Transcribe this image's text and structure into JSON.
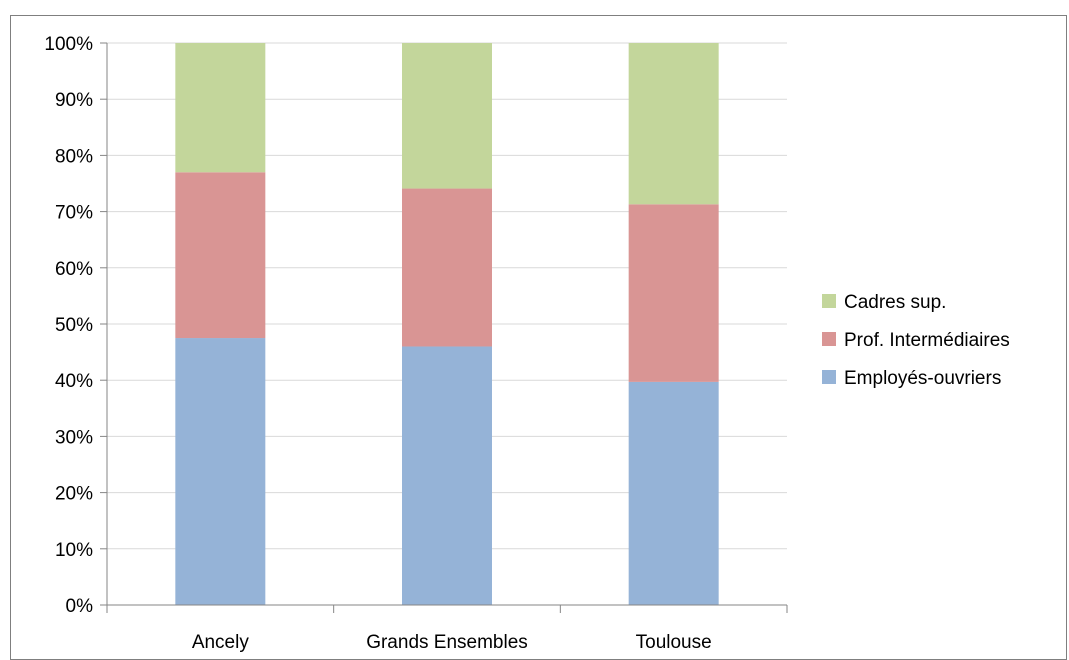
{
  "chart_data": {
    "type": "bar",
    "stacked": true,
    "categories": [
      "Ancely",
      "Grands Ensembles",
      "Toulouse"
    ],
    "series": [
      {
        "name": "Employés-ouvriers",
        "values": [
          47.5,
          46,
          39.7
        ],
        "color": "#95b3d7"
      },
      {
        "name": "Prof. Intermédiaires",
        "values": [
          29.5,
          28.1,
          31.6
        ],
        "color": "#d99594"
      },
      {
        "name": "Cadres sup.",
        "values": [
          23,
          25.9,
          28.7
        ],
        "color": "#c3d69b"
      }
    ],
    "yticks": [
      "0%",
      "10%",
      "20%",
      "30%",
      "40%",
      "50%",
      "60%",
      "70%",
      "80%",
      "90%",
      "100%"
    ],
    "ylim": [
      0,
      100
    ],
    "grid": true,
    "legend_position": "right",
    "legend_order": [
      "Cadres sup.",
      "Prof. Intermédiaires",
      "Employés-ouvriers"
    ]
  }
}
